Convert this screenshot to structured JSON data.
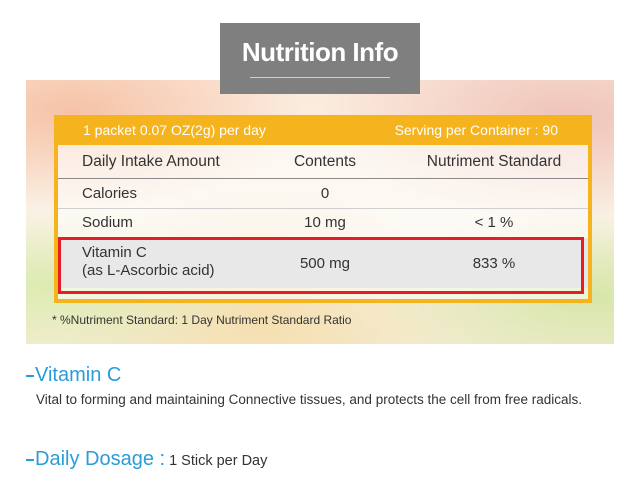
{
  "title": "Nutrition Info",
  "serving": {
    "packet": "1 packet 0.07 OZ(2g) per day",
    "per_container": "Serving per Container : 90"
  },
  "table": {
    "headers": [
      "Daily Intake Amount",
      "Contents",
      "Nutriment Standard"
    ],
    "rows": [
      {
        "name": "Calories",
        "sub": "",
        "contents": "0",
        "standard": ""
      },
      {
        "name": "Sodium",
        "sub": "",
        "contents": "10 mg",
        "standard": "< 1 %"
      },
      {
        "name": "Vitamin C",
        "sub": "(as L-Ascorbic acid)",
        "contents": "500 mg",
        "standard": "833 %"
      }
    ]
  },
  "footnote": "* %Nutriment Standard: 1 Day Nutriment Standard Ratio",
  "vitamin_c": {
    "title": "Vitamin C",
    "description": "Vital to forming and maintaining Connective tissues, and protects the cell from free radicals."
  },
  "dosage": {
    "title": "Daily Dosage :",
    "value": "1 Stick per Day"
  },
  "colors": {
    "accent": "#f5b31d",
    "highlight": "#e31e24",
    "heading": "#2a9cd8",
    "title_box": "#7f7f7f"
  }
}
